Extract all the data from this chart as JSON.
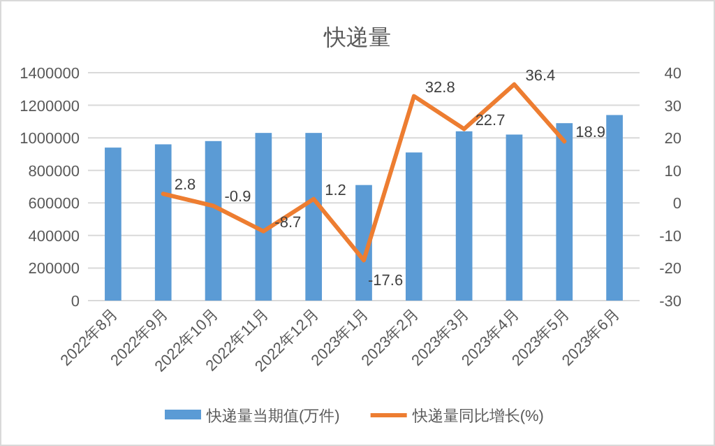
{
  "chart_data": {
    "type": "bar",
    "title": "快递量",
    "categories": [
      "2022年8月",
      "2022年9月",
      "2022年10月",
      "2022年11月",
      "2022年12月",
      "2023年1月",
      "2023年2月",
      "2023年3月",
      "2023年4月",
      "2023年5月",
      "2023年6月"
    ],
    "series": [
      {
        "name": "快递量当期值(万件)",
        "color": "#5b9bd5",
        "values": [
          940000,
          960000,
          980000,
          1030000,
          1030000,
          710000,
          910000,
          1040000,
          1020000,
          1090000,
          1140000
        ]
      },
      {
        "name": "快递量同比增长(%)",
        "color": "#ed7d31",
        "type": "line",
        "axis": "y2",
        "data_labels": true,
        "values": [
          null,
          2.8,
          -0.9,
          -8.7,
          1.2,
          -17.6,
          32.8,
          22.7,
          36.4,
          18.9,
          null
        ]
      }
    ],
    "ylim": [
      0,
      1400000
    ],
    "yticks": [
      0,
      200000,
      400000,
      600000,
      800000,
      1000000,
      1200000,
      1400000
    ],
    "y2lim": [
      -30,
      40
    ],
    "y2ticks": [
      -30,
      -20,
      -10,
      0,
      10,
      20,
      30,
      40
    ],
    "grid": "y",
    "legend": "bottom"
  }
}
